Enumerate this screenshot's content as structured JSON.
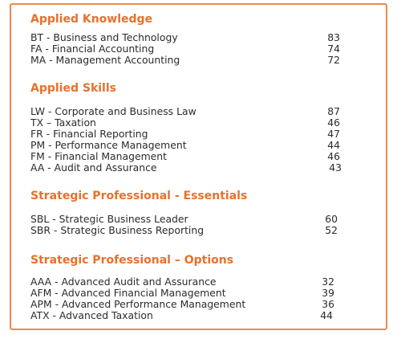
{
  "sections": [
    {
      "title": "Applied Knowledge",
      "rows": [
        {
          "label": "BT - Business and Technology",
          "score": "83"
        },
        {
          "label": "FA - Financial Accounting",
          "score": "74"
        },
        {
          "label": "MA - Management Accounting",
          "score": "72"
        }
      ]
    },
    {
      "title": "Applied Skills",
      "rows": [
        {
          "label": "LW - Corporate and Business Law",
          "score": "87"
        },
        {
          "label": "TX – Taxation",
          "score": "46"
        },
        {
          "label": "FR - Financial Reporting",
          "score": "47"
        },
        {
          "label": "PM - Performance Management",
          "score": "44"
        },
        {
          "label": "FM - Financial Management",
          "score": "46"
        },
        {
          "label": "AA - Audit and Assurance",
          "score": "43"
        }
      ]
    },
    {
      "title": "Strategic Professional - Essentials",
      "rows": [
        {
          "label": "SBL - Strategic Business Leader",
          "score": "60"
        },
        {
          "label": "SBR - Strategic Business Reporting",
          "score": "52"
        }
      ]
    },
    {
      "title": "Strategic Professional – Options",
      "rows": [
        {
          "label": "AAA - Advanced Audit and Assurance",
          "score": "32"
        },
        {
          "label": "AFM - Advanced Financial Management",
          "score": "39"
        },
        {
          "label": "APM - Advanced Performance Management",
          "score": "36"
        },
        {
          "label": "ATX - Advanced Taxation",
          "score": "44"
        }
      ]
    }
  ],
  "colors": {
    "accent": "#e8702a",
    "border": "#ee8a4a",
    "text": "#2b2b2b"
  }
}
